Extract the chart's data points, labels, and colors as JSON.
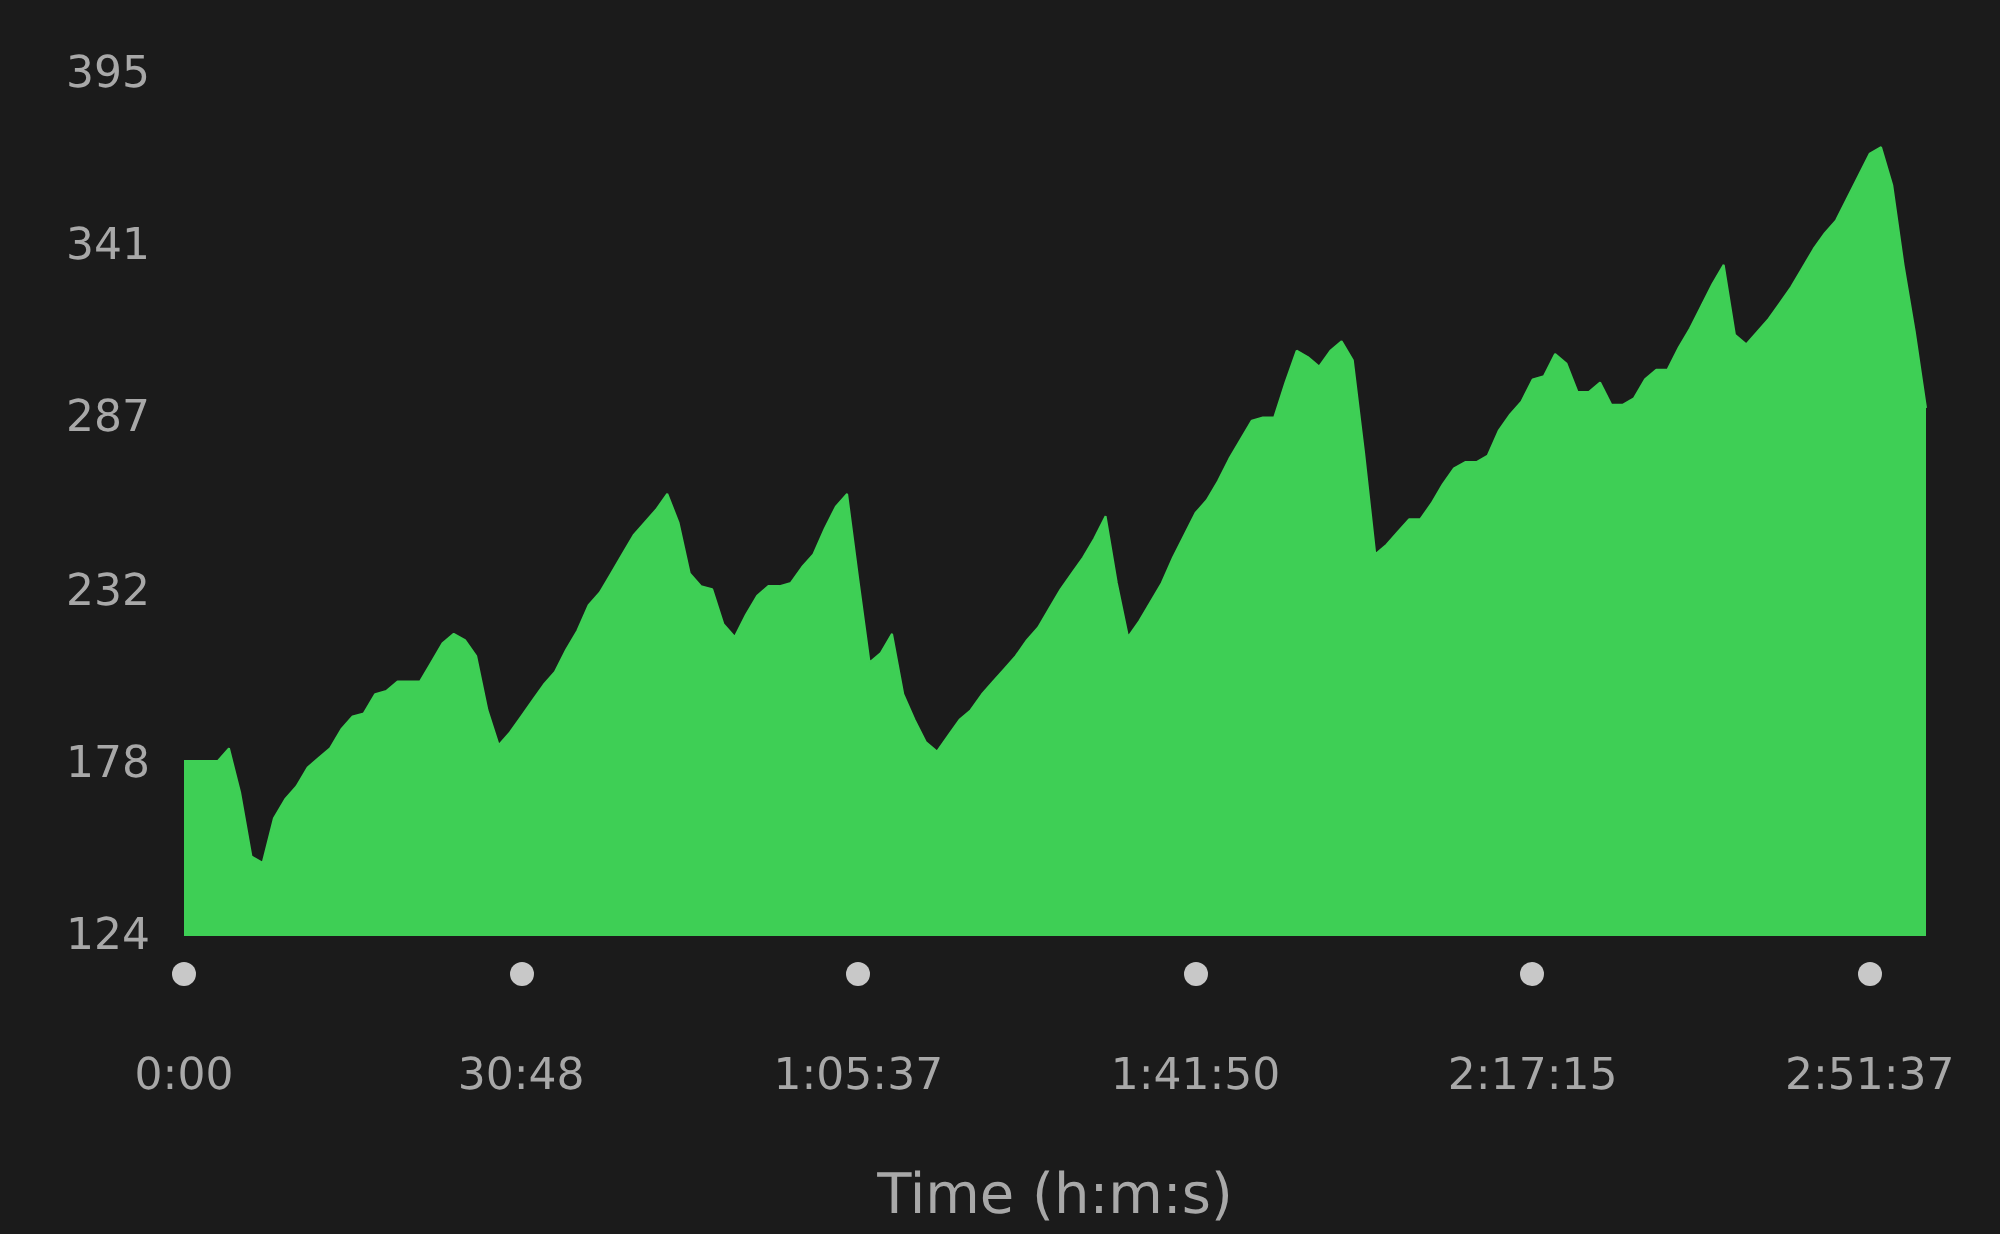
{
  "chart_data": {
    "type": "area",
    "xlabel": "Time (h:m:s)",
    "categories": [
      "0:00",
      null,
      null,
      null,
      null,
      null,
      null,
      null,
      null,
      null,
      null,
      null,
      null,
      null,
      null,
      null,
      null,
      null,
      null,
      null,
      null,
      null,
      null,
      null,
      null,
      null,
      null,
      null,
      null,
      null,
      "30:48",
      null,
      null,
      null,
      null,
      null,
      null,
      null,
      null,
      null,
      null,
      null,
      null,
      null,
      null,
      null,
      null,
      null,
      null,
      null,
      null,
      null,
      null,
      null,
      null,
      null,
      null,
      null,
      null,
      null,
      "1:05:37",
      null,
      null,
      null,
      null,
      null,
      null,
      null,
      null,
      null,
      null,
      null,
      null,
      null,
      null,
      null,
      null,
      null,
      null,
      null,
      null,
      null,
      null,
      null,
      null,
      null,
      null,
      null,
      null,
      null,
      "1:41:50",
      null,
      null,
      null,
      null,
      null,
      null,
      null,
      null,
      null,
      null,
      null,
      null,
      null,
      null,
      null,
      null,
      null,
      null,
      null,
      null,
      null,
      null,
      null,
      null,
      null,
      null,
      null,
      null,
      null,
      "2:17:15",
      null,
      null,
      null,
      null,
      null,
      null,
      null,
      null,
      null,
      null,
      null,
      null,
      null,
      null,
      null,
      null,
      null,
      null,
      null,
      null,
      null,
      null,
      null,
      null,
      null,
      null,
      null,
      null,
      null,
      "2:51:37",
      null,
      null,
      null,
      null,
      null
    ],
    "values": [
      179,
      179,
      179,
      179,
      183,
      169,
      149,
      147,
      161,
      167,
      171,
      177,
      180,
      183,
      189,
      193,
      194,
      200,
      201,
      204,
      204,
      204,
      210,
      216,
      219,
      217,
      212,
      195,
      184,
      188,
      193,
      198,
      203,
      207,
      214,
      220,
      228,
      232,
      238,
      244,
      250,
      254,
      258,
      263,
      254,
      238,
      234,
      233,
      222,
      218,
      225,
      231,
      234,
      234,
      235,
      240,
      244,
      252,
      259,
      263,
      236,
      210,
      213,
      219,
      200,
      192,
      185,
      182,
      187,
      192,
      195,
      200,
      204,
      208,
      212,
      217,
      221,
      227,
      233,
      238,
      243,
      249,
      256,
      235,
      218,
      223,
      229,
      235,
      243,
      250,
      257,
      261,
      267,
      274,
      280,
      286,
      287,
      287,
      298,
      308,
      306,
      303,
      308,
      311,
      305,
      276,
      244,
      247,
      251,
      255,
      255,
      260,
      266,
      271,
      273,
      273,
      275,
      283,
      288,
      292,
      299,
      300,
      307,
      304,
      295,
      295,
      298,
      291,
      291,
      293,
      299,
      302,
      302,
      309,
      315,
      322,
      329,
      335,
      313,
      310,
      314,
      318,
      323,
      328,
      334,
      340,
      345,
      349,
      356,
      363,
      370,
      372,
      360,
      335,
      314,
      290
    ],
    "color": "#3ecf55",
    "ylim": [
      124,
      395
    ],
    "yticks": [
      124,
      178,
      232,
      287,
      341,
      395
    ],
    "grid": false
  }
}
